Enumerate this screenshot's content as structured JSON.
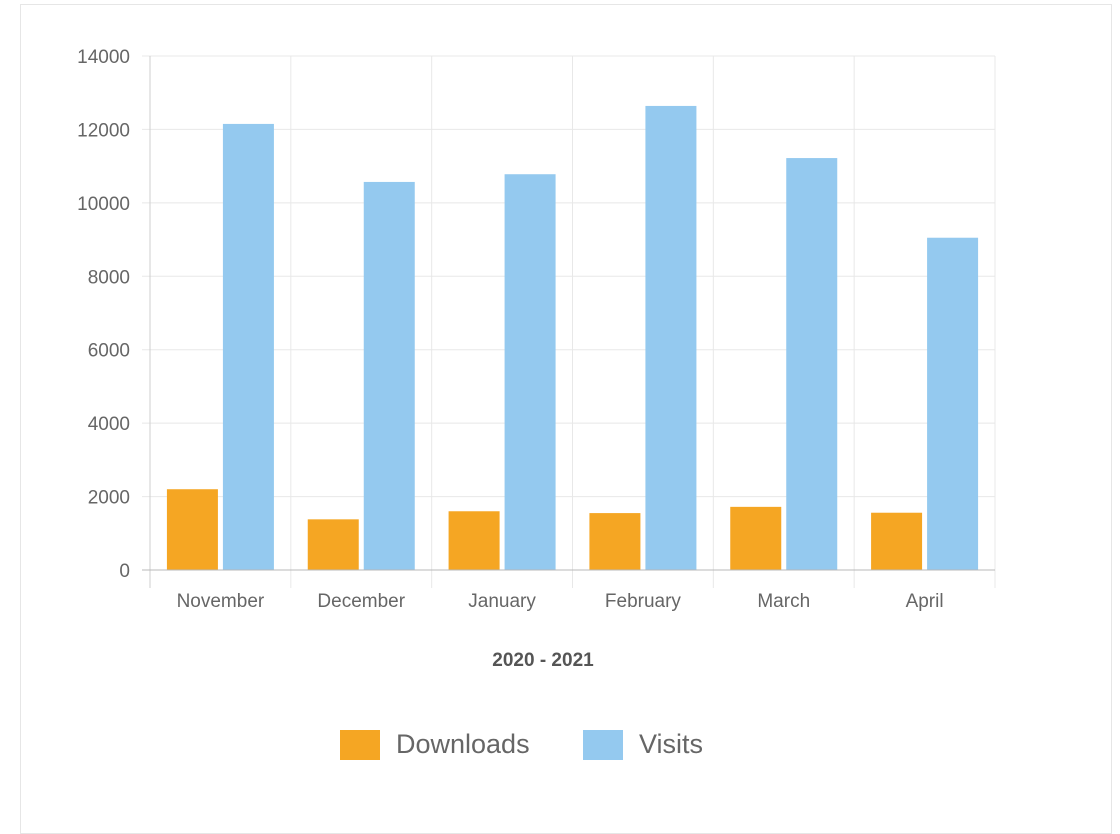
{
  "chart_data": {
    "type": "bar",
    "categories": [
      "November",
      "December",
      "January",
      "February",
      "March",
      "April"
    ],
    "series": [
      {
        "name": "Downloads",
        "color": "#f5a623",
        "values": [
          2200,
          1380,
          1600,
          1550,
          1720,
          1560
        ]
      },
      {
        "name": "Visits",
        "color": "#94c9ef",
        "values": [
          12150,
          10570,
          10780,
          12640,
          11220,
          9050
        ]
      }
    ],
    "xlabel": "2020 - 2021",
    "ylabel": "",
    "ylim": [
      0,
      14000
    ],
    "yticks": [
      "0",
      "2000",
      "4000",
      "6000",
      "8000",
      "10000",
      "12000",
      "14000"
    ],
    "grid": true,
    "legend_position": "bottom"
  }
}
